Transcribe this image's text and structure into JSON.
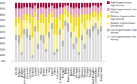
{
  "chart_data": {
    "type": "bar",
    "stacked": true,
    "legend": "top-right",
    "grid": false,
    "categories": [
      "EU-28",
      "Belgium",
      "Bulgaria",
      "Czech Republic",
      "Denmark",
      "Germany",
      "Estonia",
      "Ireland",
      "Greece",
      "Spain",
      "France",
      "Croatia",
      "Italy",
      "Cyprus",
      "Latvia",
      "Lithuania",
      "Luxembourg",
      "Hungary",
      "Malta",
      "Netherlands",
      "Austria",
      "Poland",
      "Portugal",
      "Romania",
      "Slovenia",
      "Slovakia",
      "Finland",
      "Sweden",
      "United Kingdom",
      "Liechtenstein",
      "Norway",
      "Switzerland"
    ],
    "ylim": [
      0,
      100
    ],
    "yticks": [
      {
        "value": 0,
        "label": "0%"
      },
      {
        "value": 10,
        "label": "10%"
      },
      {
        "value": 20,
        "label": "20%"
      },
      {
        "value": 30,
        "label": "30%"
      },
      {
        "value": 40,
        "label": "40%"
      },
      {
        "value": 50,
        "label": "50%"
      },
      {
        "value": 60,
        "label": "60%"
      },
      {
        "value": 70,
        "label": "70%"
      },
      {
        "value": 80,
        "label": "80%"
      },
      {
        "value": 90,
        "label": "90%"
      },
      {
        "value": 100,
        "label": "100%"
      }
    ],
    "series": [
      {
        "name": "Low fragmentation, low density",
        "color": "#dcdcdc",
        "values": [
          35,
          30,
          10,
          45,
          40,
          35,
          5,
          50,
          20,
          35,
          30,
          15,
          40,
          55,
          10,
          15,
          45,
          25,
          60,
          50,
          40,
          20,
          30,
          10,
          35,
          20,
          45,
          40,
          50,
          55,
          45,
          50
        ]
      },
      {
        "name": "Low fragmentation, high density",
        "color": "#b4b4b4",
        "values": [
          10,
          15,
          5,
          10,
          15,
          10,
          5,
          10,
          10,
          10,
          15,
          5,
          10,
          10,
          5,
          5,
          10,
          10,
          10,
          15,
          10,
          10,
          10,
          5,
          10,
          10,
          10,
          15,
          10,
          10,
          10,
          10
        ]
      },
      {
        "name": "Medium fragmentation, low density",
        "color": "#f7ef9c",
        "values": [
          15,
          20,
          25,
          15,
          15,
          20,
          30,
          15,
          20,
          20,
          20,
          25,
          15,
          10,
          30,
          25,
          15,
          20,
          10,
          10,
          15,
          20,
          20,
          25,
          20,
          25,
          15,
          15,
          15,
          10,
          15,
          15
        ]
      },
      {
        "name": "Medium fragmentation, high density",
        "color": "#f0dc1e",
        "values": [
          15,
          10,
          30,
          10,
          10,
          15,
          35,
          10,
          20,
          15,
          15,
          30,
          15,
          10,
          30,
          30,
          10,
          25,
          10,
          10,
          15,
          25,
          20,
          35,
          15,
          25,
          10,
          10,
          10,
          10,
          10,
          10
        ]
      },
      {
        "name": "High fragmentation, low density",
        "color": "#e6a3bf",
        "values": [
          15,
          15,
          20,
          12,
          12,
          12,
          15,
          10,
          20,
          12,
          12,
          15,
          12,
          10,
          15,
          15,
          12,
          12,
          5,
          10,
          12,
          15,
          12,
          15,
          12,
          12,
          12,
          12,
          10,
          10,
          12,
          10
        ]
      },
      {
        "name": "High fragmentation, high density",
        "color": "#9e0f3e",
        "values": [
          10,
          10,
          10,
          8,
          8,
          8,
          10,
          5,
          10,
          8,
          8,
          10,
          8,
          5,
          10,
          10,
          8,
          8,
          5,
          5,
          8,
          10,
          8,
          10,
          8,
          8,
          8,
          8,
          5,
          5,
          8,
          5
        ]
      }
    ]
  }
}
